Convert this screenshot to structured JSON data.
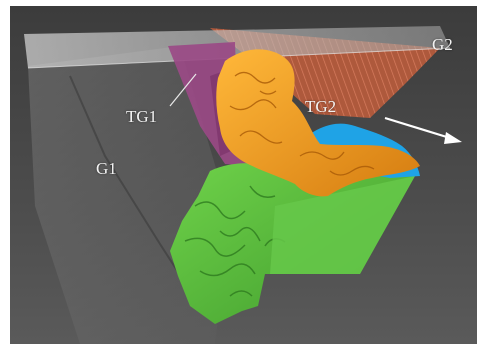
{
  "figure": {
    "labels": {
      "g1": "G1",
      "g2": "G2",
      "tg1": "TG1",
      "tg2": "TG2"
    }
  },
  "colors": {
    "background": "#4a4a4a",
    "grain_boundary_plane": "#bdbdbd",
    "g2_grain": "#b45a3c",
    "tg1_twin": "#9a4a86",
    "tg2_twin": "#f0a01e",
    "blue_region": "#1fa3e6",
    "green_region": "#5cc33f",
    "arrow": "#ffffff"
  },
  "icons": {
    "arrow": "direction-arrow-icon"
  }
}
